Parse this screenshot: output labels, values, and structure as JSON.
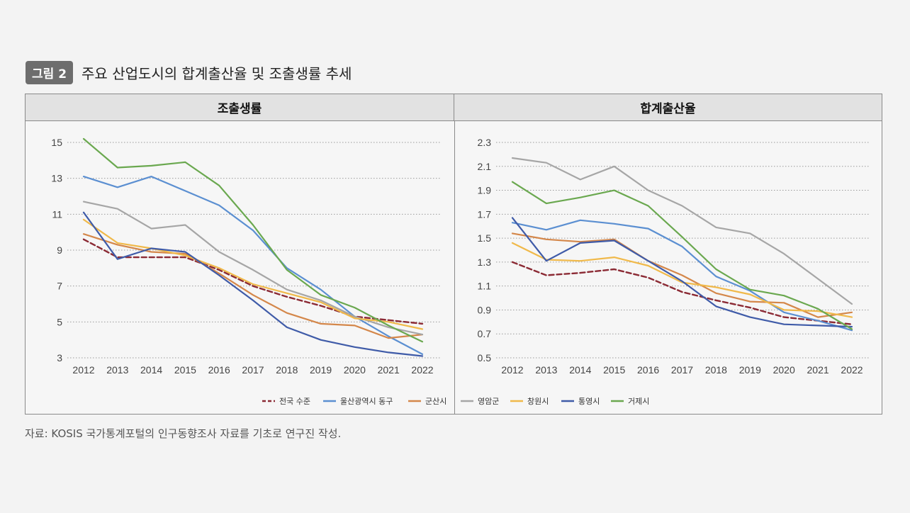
{
  "figure": {
    "badge": "그림 2",
    "title": "주요 산업도시의 합계출산율 및 조출생률 추세",
    "source": "자료: KOSIS 국가통계포털의 인구동향조사 자료를 기초로 연구진 작성."
  },
  "colors": {
    "전국 수준": "#8b2a34",
    "울산광역시 동구": "#5b8fd1",
    "군산시": "#d4874a",
    "영암군": "#a6a6a6",
    "창원시": "#f0b94a",
    "통영시": "#3f5ba8",
    "거제시": "#6aa84f"
  },
  "chart_data": [
    {
      "type": "line",
      "title": "조출생률",
      "categories": [
        "2012",
        "2013",
        "2014",
        "2015",
        "2016",
        "2017",
        "2018",
        "2019",
        "2020",
        "2021",
        "2022"
      ],
      "ylim": [
        3,
        15
      ],
      "yticks": [
        "3",
        "5",
        "7",
        "9",
        "11",
        "13",
        "15"
      ],
      "grid": true,
      "series": [
        {
          "name": "전국 수준",
          "dashed": true,
          "values": [
            9.6,
            8.6,
            8.6,
            8.6,
            7.9,
            7.0,
            6.4,
            5.9,
            5.3,
            5.1,
            4.9
          ]
        },
        {
          "name": "울산광역시 동구",
          "values": [
            13.1,
            12.5,
            13.1,
            12.3,
            11.5,
            10.1,
            8.0,
            6.8,
            5.3,
            4.2,
            3.2
          ]
        },
        {
          "name": "군산시",
          "values": [
            9.9,
            9.3,
            8.9,
            8.8,
            7.7,
            6.5,
            5.5,
            4.9,
            4.8,
            4.1,
            4.3
          ]
        },
        {
          "name": "영암군",
          "values": [
            11.7,
            11.3,
            10.2,
            10.4,
            8.9,
            7.9,
            6.8,
            6.2,
            5.3,
            4.7,
            4.3
          ]
        },
        {
          "name": "창원시",
          "values": [
            10.7,
            9.4,
            9.1,
            8.7,
            8.0,
            7.1,
            6.6,
            6.1,
            5.2,
            5.0,
            4.6
          ]
        },
        {
          "name": "통영시",
          "values": [
            11.1,
            8.5,
            9.1,
            8.9,
            7.6,
            6.2,
            4.7,
            4.0,
            3.6,
            3.3,
            3.1
          ]
        },
        {
          "name": "거제시",
          "values": [
            15.2,
            13.6,
            13.7,
            13.9,
            12.6,
            10.4,
            7.9,
            6.5,
            5.8,
            4.8,
            3.9
          ]
        }
      ]
    },
    {
      "type": "line",
      "title": "합계출산율",
      "categories": [
        "2012",
        "2013",
        "2014",
        "2015",
        "2016",
        "2017",
        "2018",
        "2019",
        "2020",
        "2021",
        "2022"
      ],
      "ylim": [
        0.5,
        2.3
      ],
      "yticks": [
        "0.5",
        "0.7",
        "0.9",
        "1.1",
        "1.3",
        "1.5",
        "1.7",
        "1.9",
        "2.1",
        "2.3"
      ],
      "grid": true,
      "series": [
        {
          "name": "전국 수준",
          "dashed": true,
          "values": [
            1.3,
            1.19,
            1.21,
            1.24,
            1.17,
            1.05,
            0.98,
            0.92,
            0.84,
            0.81,
            0.78
          ]
        },
        {
          "name": "울산광역시 동구",
          "values": [
            1.63,
            1.57,
            1.65,
            1.62,
            1.58,
            1.43,
            1.18,
            1.06,
            0.88,
            0.81,
            0.73
          ]
        },
        {
          "name": "군산시",
          "values": [
            1.54,
            1.49,
            1.47,
            1.49,
            1.31,
            1.19,
            1.04,
            0.97,
            0.96,
            0.84,
            0.88
          ]
        },
        {
          "name": "영암군",
          "values": [
            2.17,
            2.13,
            1.99,
            2.1,
            1.9,
            1.77,
            1.59,
            1.54,
            1.37,
            1.16,
            0.95
          ]
        },
        {
          "name": "창원시",
          "values": [
            1.46,
            1.32,
            1.31,
            1.34,
            1.27,
            1.13,
            1.09,
            1.03,
            0.9,
            0.89,
            0.84
          ]
        },
        {
          "name": "통영시",
          "values": [
            1.67,
            1.31,
            1.46,
            1.48,
            1.31,
            1.14,
            0.93,
            0.84,
            0.78,
            0.77,
            0.76
          ]
        },
        {
          "name": "거제시",
          "values": [
            1.97,
            1.79,
            1.84,
            1.9,
            1.77,
            1.51,
            1.24,
            1.07,
            1.02,
            0.91,
            0.74
          ]
        }
      ]
    }
  ],
  "legend": [
    "전국 수준",
    "울산광역시 동구",
    "군산시",
    "영암군",
    "창원시",
    "통영시",
    "거제시"
  ]
}
